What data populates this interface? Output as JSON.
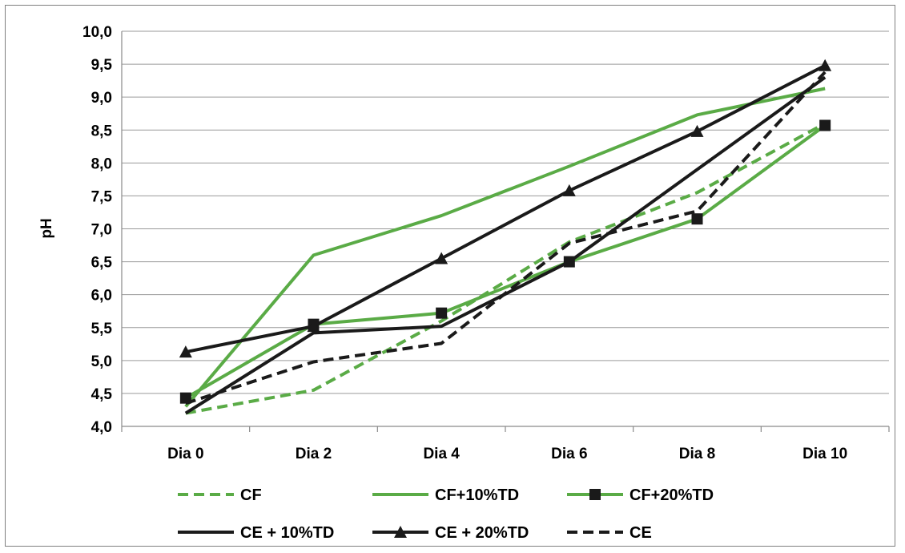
{
  "chart_data": {
    "type": "line",
    "categories": [
      "Dia 0",
      "Dia 2",
      "Dia 4",
      "Dia 6",
      "Dia 8",
      "Dia 10"
    ],
    "ylabel": "pH",
    "ylim": [
      4.0,
      10.0
    ],
    "yticks": [
      "4,0",
      "4,5",
      "5,0",
      "5,5",
      "6,0",
      "6,5",
      "7,0",
      "7,5",
      "8,0",
      "8,5",
      "9,0",
      "9,5",
      "10,0"
    ],
    "grid": true,
    "legend": "bottom",
    "series": [
      {
        "name": "CF",
        "color": "#5aab46",
        "dash": true,
        "marker": "none",
        "values": [
          4.2,
          4.55,
          5.6,
          6.8,
          7.55,
          8.6
        ]
      },
      {
        "name": "CF+10%TD",
        "color": "#5aab46",
        "dash": false,
        "marker": "none",
        "values": [
          4.3,
          6.6,
          7.2,
          7.95,
          8.73,
          9.13
        ]
      },
      {
        "name": "CF+20%TD",
        "color": "#5aab46",
        "dash": false,
        "marker": "square",
        "values": [
          4.43,
          5.55,
          5.72,
          6.5,
          7.15,
          8.57
        ]
      },
      {
        "name": "CE + 10%TD",
        "color": "#1a1a1a",
        "dash": false,
        "marker": "none",
        "values": [
          4.2,
          5.42,
          5.52,
          6.5,
          7.9,
          9.3
        ]
      },
      {
        "name": "CE + 20%TD",
        "color": "#1a1a1a",
        "dash": false,
        "marker": "triangle",
        "values": [
          5.13,
          5.52,
          6.55,
          7.58,
          8.48,
          9.48
        ]
      },
      {
        "name": "CE",
        "color": "#1a1a1a",
        "dash": true,
        "marker": "none",
        "values": [
          4.35,
          4.98,
          5.26,
          6.78,
          7.27,
          9.38
        ]
      }
    ]
  }
}
